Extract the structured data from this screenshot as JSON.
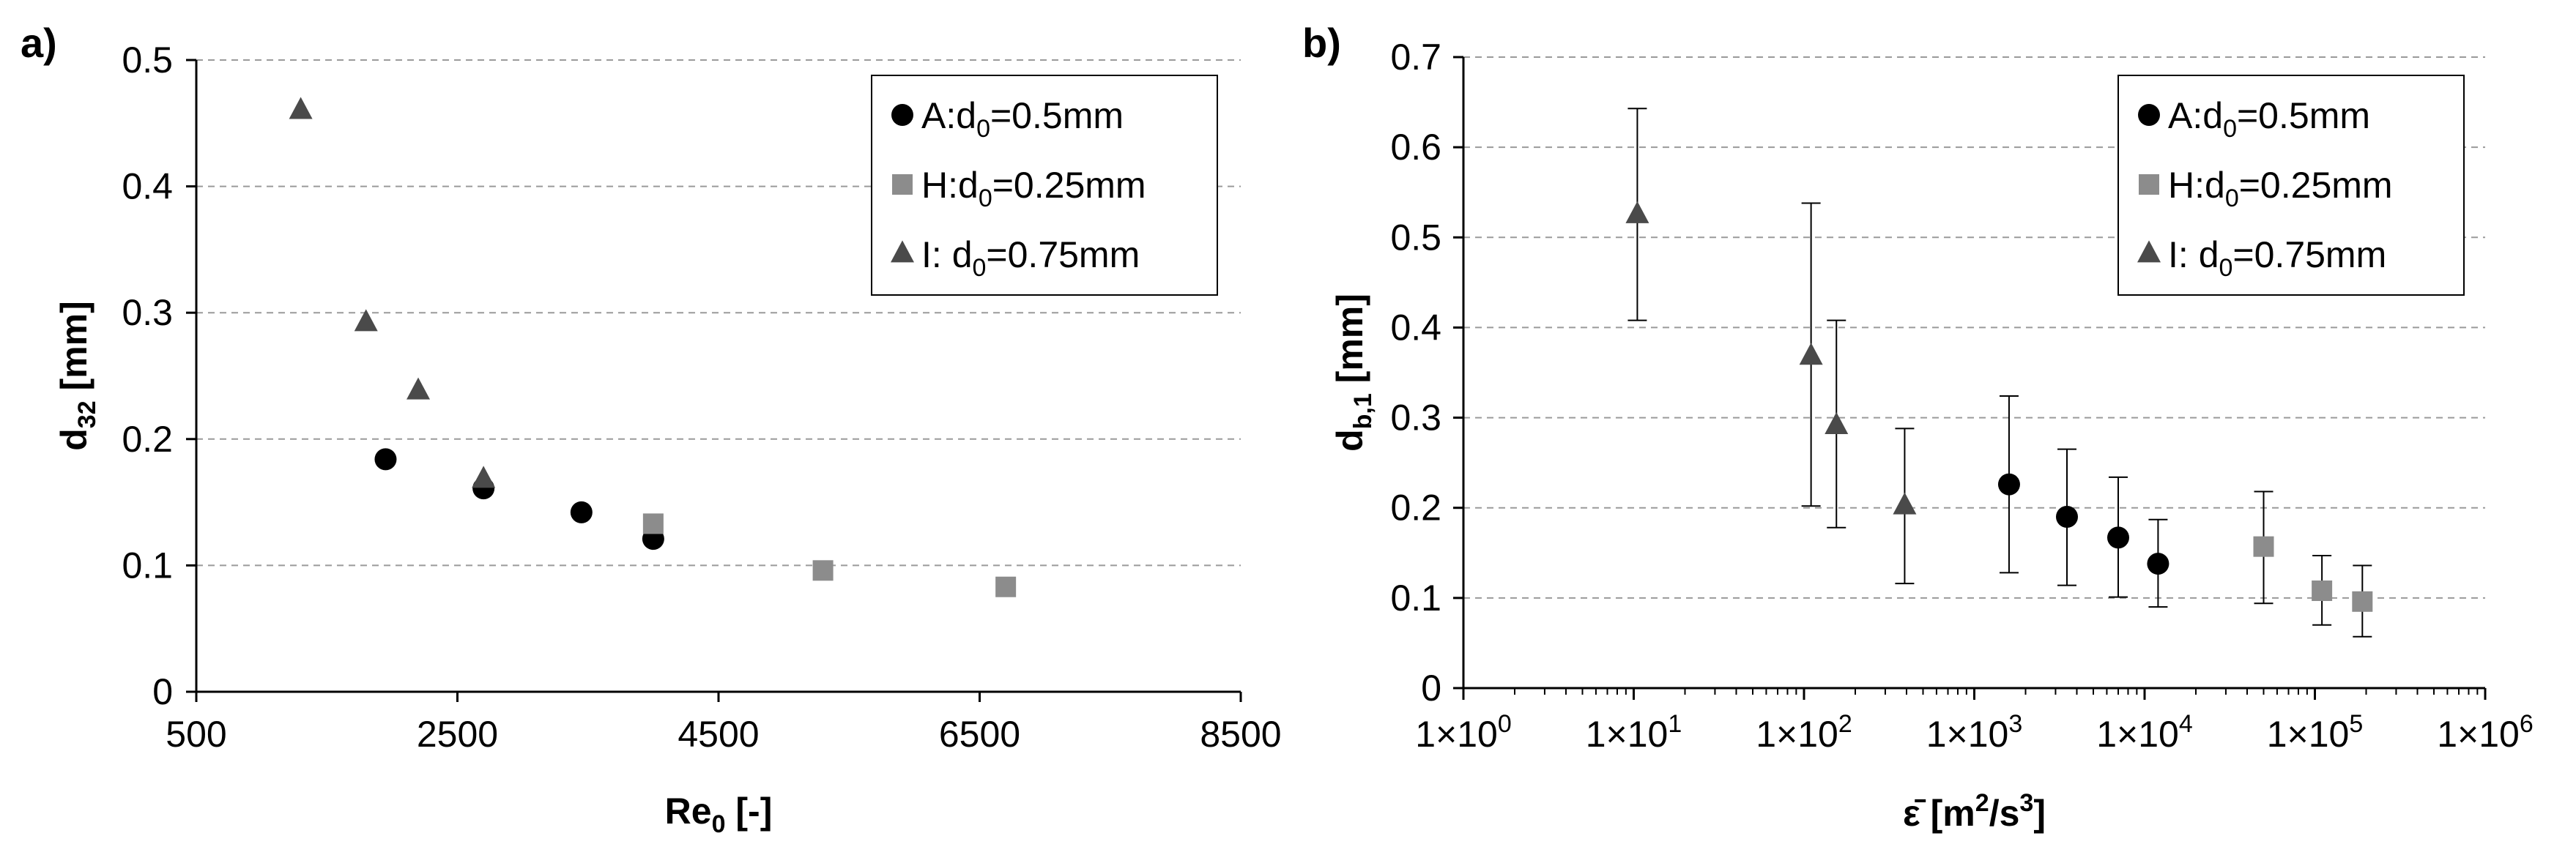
{
  "chart_data": [
    {
      "type": "scatter",
      "panel_label": "a)",
      "xlabel": {
        "main": "Re",
        "sub": "0",
        "tail": " [-]"
      },
      "ylabel": {
        "main": "d",
        "sub": "32",
        "tail": " [mm]"
      },
      "xlim": [
        500,
        8500
      ],
      "ylim": [
        0,
        0.5
      ],
      "x_ticks": [
        500,
        2500,
        4500,
        6500,
        8500
      ],
      "x_tick_labels": [
        "500",
        "2500",
        "4500",
        "6500",
        "8500"
      ],
      "y_ticks": [
        0,
        0.1,
        0.2,
        0.3,
        0.4,
        0.5
      ],
      "y_tick_labels": [
        "0",
        "0.1",
        "0.2",
        "0.3",
        "0.4",
        "0.5"
      ],
      "grid": "horizontal dashed",
      "legend_position": "top-right",
      "series": [
        {
          "name_prefix": "A:",
          "name_main": "d",
          "name_sub": "0",
          "name_tail": "=0.5mm",
          "marker": "circle",
          "color": "#000000",
          "x": [
            1950,
            2700,
            3450,
            4000
          ],
          "y": [
            0.184,
            0.161,
            0.142,
            0.121
          ]
        },
        {
          "name_prefix": "H:",
          "name_main": "d",
          "name_sub": "0",
          "name_tail": "=0.25mm",
          "marker": "square",
          "color": "#8c8c8c",
          "x": [
            4000,
            5300,
            6700
          ],
          "y": [
            0.133,
            0.096,
            0.083
          ]
        },
        {
          "name_prefix": "I:  ",
          "name_main": "d",
          "name_sub": "0",
          "name_tail": "=0.75mm",
          "marker": "triangle",
          "color": "#4a4a4a",
          "x": [
            1300,
            1800,
            2200,
            2700
          ],
          "y": [
            0.46,
            0.292,
            0.238,
            0.168
          ]
        }
      ]
    },
    {
      "type": "scatter",
      "panel_label": "b)",
      "xlabel": {
        "main": "ε̄",
        "tail": " [m",
        "sup1": "2",
        "mid": "/s",
        "sup2": "3",
        "end": "]"
      },
      "ylabel": {
        "main": "d",
        "sub": "b,1",
        "tail": " [mm]"
      },
      "x_scale": "log",
      "xlim": [
        1,
        1000000
      ],
      "ylim": [
        0,
        0.7
      ],
      "x_ticks": [
        1,
        10,
        100,
        1000,
        10000,
        100000,
        1000000
      ],
      "x_tick_bases": [
        "1×10",
        "1×10",
        "1×10",
        "1×10",
        "1×10",
        "1×10",
        "1×10"
      ],
      "x_tick_exps": [
        "0",
        "1",
        "2",
        "3",
        "4",
        "5",
        "6"
      ],
      "y_ticks": [
        0,
        0.1,
        0.2,
        0.3,
        0.4,
        0.5,
        0.6,
        0.7
      ],
      "y_tick_labels": [
        "0",
        "0.1",
        "0.2",
        "0.3",
        "0.4",
        "0.5",
        "0.6",
        "0.7"
      ],
      "grid": "horizontal dashed",
      "legend_position": "top-right",
      "series": [
        {
          "name_prefix": "A:",
          "name_main": "d",
          "name_sub": "0",
          "name_tail": "=0.5mm",
          "marker": "circle",
          "color": "#000000",
          "x": [
            1600,
            3500,
            7000,
            12000
          ],
          "y": [
            0.226,
            0.19,
            0.167,
            0.138
          ],
          "y_low": [
            0.128,
            0.114,
            0.101,
            0.09
          ],
          "y_high": [
            0.324,
            0.265,
            0.234,
            0.187
          ]
        },
        {
          "name_prefix": "H:",
          "name_main": "d",
          "name_sub": "0",
          "name_tail": "=0.25mm",
          "marker": "square",
          "color": "#8c8c8c",
          "x": [
            50000,
            110000,
            190000
          ],
          "y": [
            0.157,
            0.108,
            0.096
          ],
          "y_low": [
            0.094,
            0.07,
            0.057
          ],
          "y_high": [
            0.218,
            0.147,
            0.136
          ]
        },
        {
          "name_prefix": "I:  ",
          "name_main": "d",
          "name_sub": "0",
          "name_tail": "=0.75mm",
          "marker": "triangle",
          "color": "#4a4a4a",
          "x": [
            10.5,
            110,
            155,
            390
          ],
          "y": [
            0.525,
            0.368,
            0.291,
            0.202
          ],
          "y_low": [
            0.408,
            0.202,
            0.178,
            0.116
          ],
          "y_high": [
            0.643,
            0.538,
            0.408,
            0.288
          ]
        }
      ]
    }
  ]
}
